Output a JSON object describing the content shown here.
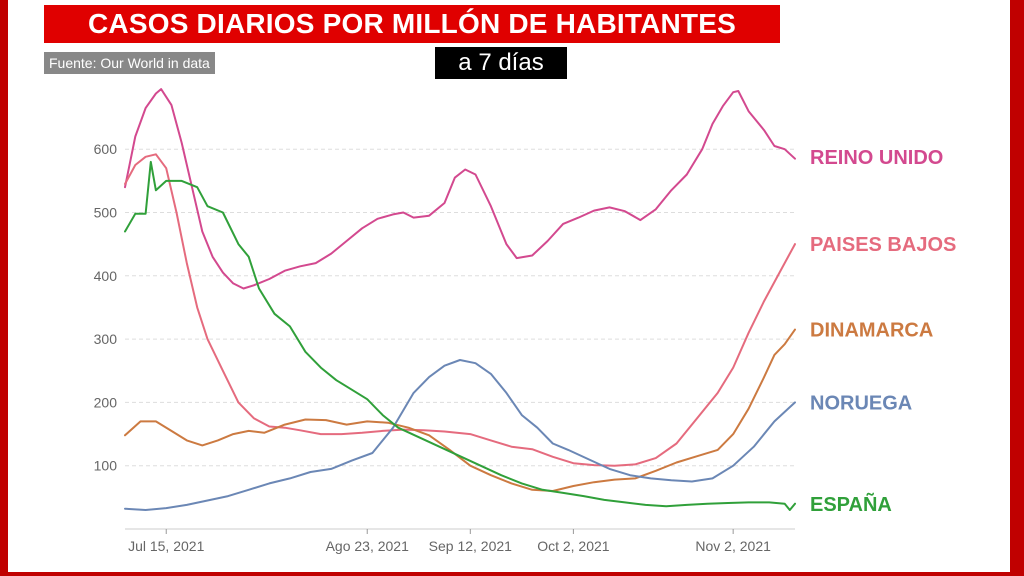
{
  "header": {
    "title": "CASOS DIARIOS POR MILLÓN DE HABITANTES",
    "subtitle": "a 7 días",
    "source": "Fuente: Our World in data"
  },
  "colors": {
    "frame": "#c00000",
    "title_bg": "#e00000",
    "reino_unido": "#d3498f",
    "paises_bajos": "#e56b7e",
    "dinamarca": "#cc7a41",
    "noruega": "#6b87b5",
    "espana": "#30a03a"
  },
  "chart_data": {
    "type": "line",
    "title": "CASOS DIARIOS POR MILLÓN DE HABITANTES",
    "subtitle": "a 7 días",
    "xlabel": "",
    "ylabel": "",
    "x_range": [
      "2021-07-07",
      "2021-11-07"
    ],
    "ylim": [
      0,
      700
    ],
    "y_ticks": [
      100,
      200,
      300,
      400,
      500,
      600
    ],
    "x_ticks": [
      {
        "date": "2021-07-15",
        "label": "Jul 15, 2021"
      },
      {
        "date": "2021-08-23",
        "label": "Ago 23, 2021"
      },
      {
        "date": "2021-09-12",
        "label": "Sep 12, 2021"
      },
      {
        "date": "2021-10-02",
        "label": "Oct 2, 2021"
      },
      {
        "date": "2021-11-02",
        "label": "Nov 2, 2021"
      }
    ],
    "grid": "horizontal-dashed",
    "legend": "right-inline",
    "series": [
      {
        "name": "REINO UNIDO",
        "color": "#d3498f",
        "points": [
          [
            "2021-07-07",
            540
          ],
          [
            "2021-07-09",
            620
          ],
          [
            "2021-07-11",
            665
          ],
          [
            "2021-07-13",
            688
          ],
          [
            "2021-07-14",
            695
          ],
          [
            "2021-07-16",
            670
          ],
          [
            "2021-07-18",
            610
          ],
          [
            "2021-07-20",
            540
          ],
          [
            "2021-07-22",
            470
          ],
          [
            "2021-07-24",
            430
          ],
          [
            "2021-07-26",
            405
          ],
          [
            "2021-07-28",
            388
          ],
          [
            "2021-07-30",
            380
          ],
          [
            "2021-08-01",
            385
          ],
          [
            "2021-08-04",
            395
          ],
          [
            "2021-08-07",
            408
          ],
          [
            "2021-08-10",
            415
          ],
          [
            "2021-08-13",
            420
          ],
          [
            "2021-08-16",
            435
          ],
          [
            "2021-08-19",
            455
          ],
          [
            "2021-08-22",
            475
          ],
          [
            "2021-08-25",
            490
          ],
          [
            "2021-08-28",
            497
          ],
          [
            "2021-08-30",
            500
          ],
          [
            "2021-09-01",
            492
          ],
          [
            "2021-09-04",
            495
          ],
          [
            "2021-09-07",
            515
          ],
          [
            "2021-09-09",
            555
          ],
          [
            "2021-09-11",
            568
          ],
          [
            "2021-09-13",
            560
          ],
          [
            "2021-09-16",
            510
          ],
          [
            "2021-09-19",
            450
          ],
          [
            "2021-09-21",
            428
          ],
          [
            "2021-09-24",
            432
          ],
          [
            "2021-09-27",
            455
          ],
          [
            "2021-09-30",
            482
          ],
          [
            "2021-10-03",
            492
          ],
          [
            "2021-10-06",
            503
          ],
          [
            "2021-10-09",
            508
          ],
          [
            "2021-10-12",
            502
          ],
          [
            "2021-10-15",
            488
          ],
          [
            "2021-10-18",
            505
          ],
          [
            "2021-10-21",
            535
          ],
          [
            "2021-10-24",
            560
          ],
          [
            "2021-10-27",
            600
          ],
          [
            "2021-10-29",
            640
          ],
          [
            "2021-10-31",
            668
          ],
          [
            "2021-11-02",
            690
          ],
          [
            "2021-11-03",
            692
          ],
          [
            "2021-11-05",
            660
          ],
          [
            "2021-11-08",
            630
          ],
          [
            "2021-11-10",
            605
          ],
          [
            "2021-11-12",
            600
          ],
          [
            "2021-11-14",
            585
          ]
        ]
      },
      {
        "name": "PAISES BAJOS",
        "color": "#e56b7e",
        "points": [
          [
            "2021-07-07",
            545
          ],
          [
            "2021-07-09",
            575
          ],
          [
            "2021-07-11",
            588
          ],
          [
            "2021-07-13",
            592
          ],
          [
            "2021-07-15",
            570
          ],
          [
            "2021-07-17",
            500
          ],
          [
            "2021-07-19",
            420
          ],
          [
            "2021-07-21",
            350
          ],
          [
            "2021-07-23",
            300
          ],
          [
            "2021-07-26",
            250
          ],
          [
            "2021-07-29",
            200
          ],
          [
            "2021-08-01",
            175
          ],
          [
            "2021-08-04",
            162
          ],
          [
            "2021-08-07",
            160
          ],
          [
            "2021-08-10",
            156
          ],
          [
            "2021-08-14",
            150
          ],
          [
            "2021-08-18",
            150
          ],
          [
            "2021-08-22",
            152
          ],
          [
            "2021-08-26",
            155
          ],
          [
            "2021-08-30",
            157
          ],
          [
            "2021-09-03",
            156
          ],
          [
            "2021-09-07",
            154
          ],
          [
            "2021-09-12",
            150
          ],
          [
            "2021-09-16",
            140
          ],
          [
            "2021-09-20",
            130
          ],
          [
            "2021-09-24",
            126
          ],
          [
            "2021-09-28",
            114
          ],
          [
            "2021-10-02",
            104
          ],
          [
            "2021-10-06",
            101
          ],
          [
            "2021-10-10",
            100
          ],
          [
            "2021-10-14",
            102
          ],
          [
            "2021-10-18",
            112
          ],
          [
            "2021-10-22",
            135
          ],
          [
            "2021-10-26",
            175
          ],
          [
            "2021-10-30",
            215
          ],
          [
            "2021-11-02",
            255
          ],
          [
            "2021-11-05",
            310
          ],
          [
            "2021-11-08",
            360
          ],
          [
            "2021-11-11",
            405
          ],
          [
            "2021-11-14",
            450
          ]
        ]
      },
      {
        "name": "DINAMARCA",
        "color": "#cc7a41",
        "points": [
          [
            "2021-07-07",
            148
          ],
          [
            "2021-07-10",
            170
          ],
          [
            "2021-07-13",
            170
          ],
          [
            "2021-07-16",
            155
          ],
          [
            "2021-07-19",
            140
          ],
          [
            "2021-07-22",
            132
          ],
          [
            "2021-07-25",
            140
          ],
          [
            "2021-07-28",
            150
          ],
          [
            "2021-07-31",
            155
          ],
          [
            "2021-08-03",
            152
          ],
          [
            "2021-08-07",
            165
          ],
          [
            "2021-08-11",
            173
          ],
          [
            "2021-08-15",
            172
          ],
          [
            "2021-08-19",
            165
          ],
          [
            "2021-08-23",
            170
          ],
          [
            "2021-08-27",
            168
          ],
          [
            "2021-08-31",
            160
          ],
          [
            "2021-09-04",
            148
          ],
          [
            "2021-09-08",
            125
          ],
          [
            "2021-09-12",
            100
          ],
          [
            "2021-09-16",
            85
          ],
          [
            "2021-09-20",
            72
          ],
          [
            "2021-09-24",
            62
          ],
          [
            "2021-09-28",
            60
          ],
          [
            "2021-10-02",
            68
          ],
          [
            "2021-10-06",
            74
          ],
          [
            "2021-10-10",
            78
          ],
          [
            "2021-10-14",
            80
          ],
          [
            "2021-10-18",
            92
          ],
          [
            "2021-10-22",
            105
          ],
          [
            "2021-10-26",
            115
          ],
          [
            "2021-10-30",
            125
          ],
          [
            "2021-11-02",
            150
          ],
          [
            "2021-11-05",
            190
          ],
          [
            "2021-11-08",
            240
          ],
          [
            "2021-11-10",
            275
          ],
          [
            "2021-11-12",
            292
          ],
          [
            "2021-11-14",
            315
          ]
        ]
      },
      {
        "name": "NORUEGA",
        "color": "#6b87b5",
        "points": [
          [
            "2021-07-07",
            32
          ],
          [
            "2021-07-11",
            30
          ],
          [
            "2021-07-15",
            33
          ],
          [
            "2021-07-19",
            38
          ],
          [
            "2021-07-23",
            45
          ],
          [
            "2021-07-27",
            52
          ],
          [
            "2021-07-31",
            62
          ],
          [
            "2021-08-04",
            72
          ],
          [
            "2021-08-08",
            80
          ],
          [
            "2021-08-12",
            90
          ],
          [
            "2021-08-16",
            95
          ],
          [
            "2021-08-20",
            108
          ],
          [
            "2021-08-24",
            120
          ],
          [
            "2021-08-28",
            160
          ],
          [
            "2021-09-01",
            215
          ],
          [
            "2021-09-04",
            240
          ],
          [
            "2021-09-07",
            258
          ],
          [
            "2021-09-10",
            267
          ],
          [
            "2021-09-13",
            262
          ],
          [
            "2021-09-16",
            245
          ],
          [
            "2021-09-19",
            215
          ],
          [
            "2021-09-22",
            180
          ],
          [
            "2021-09-25",
            160
          ],
          [
            "2021-09-28",
            135
          ],
          [
            "2021-10-01",
            125
          ],
          [
            "2021-10-05",
            110
          ],
          [
            "2021-10-09",
            95
          ],
          [
            "2021-10-13",
            85
          ],
          [
            "2021-10-17",
            80
          ],
          [
            "2021-10-21",
            77
          ],
          [
            "2021-10-25",
            75
          ],
          [
            "2021-10-29",
            80
          ],
          [
            "2021-11-02",
            100
          ],
          [
            "2021-11-06",
            130
          ],
          [
            "2021-11-10",
            170
          ],
          [
            "2021-11-14",
            200
          ]
        ]
      },
      {
        "name": "ESPAÑA",
        "color": "#30a03a",
        "points": [
          [
            "2021-07-07",
            470
          ],
          [
            "2021-07-09",
            498
          ],
          [
            "2021-07-11",
            498
          ],
          [
            "2021-07-12",
            580
          ],
          [
            "2021-07-13",
            535
          ],
          [
            "2021-07-15",
            550
          ],
          [
            "2021-07-18",
            550
          ],
          [
            "2021-07-21",
            540
          ],
          [
            "2021-07-23",
            510
          ],
          [
            "2021-07-26",
            500
          ],
          [
            "2021-07-29",
            450
          ],
          [
            "2021-07-31",
            430
          ],
          [
            "2021-08-02",
            380
          ],
          [
            "2021-08-05",
            340
          ],
          [
            "2021-08-08",
            320
          ],
          [
            "2021-08-11",
            280
          ],
          [
            "2021-08-14",
            255
          ],
          [
            "2021-08-17",
            235
          ],
          [
            "2021-08-20",
            220
          ],
          [
            "2021-08-23",
            205
          ],
          [
            "2021-08-26",
            180
          ],
          [
            "2021-08-29",
            160
          ],
          [
            "2021-09-02",
            145
          ],
          [
            "2021-09-06",
            130
          ],
          [
            "2021-09-10",
            115
          ],
          [
            "2021-09-14",
            100
          ],
          [
            "2021-09-18",
            85
          ],
          [
            "2021-09-22",
            72
          ],
          [
            "2021-09-26",
            62
          ],
          [
            "2021-09-30",
            57
          ],
          [
            "2021-10-04",
            52
          ],
          [
            "2021-10-08",
            46
          ],
          [
            "2021-10-12",
            42
          ],
          [
            "2021-10-16",
            38
          ],
          [
            "2021-10-20",
            36
          ],
          [
            "2021-10-24",
            38
          ],
          [
            "2021-10-28",
            40
          ],
          [
            "2021-11-01",
            41
          ],
          [
            "2021-11-05",
            42
          ],
          [
            "2021-11-09",
            42
          ],
          [
            "2021-11-12",
            40
          ],
          [
            "2021-11-13",
            30
          ],
          [
            "2021-11-14",
            40
          ]
        ]
      }
    ]
  }
}
